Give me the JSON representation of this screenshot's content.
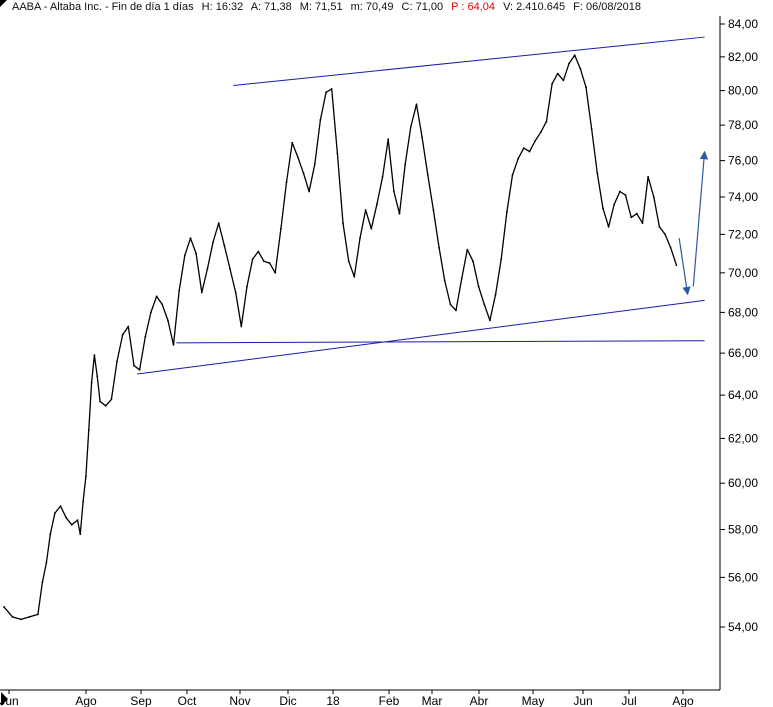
{
  "header": {
    "ticker_name": "AABA - Altaba Inc. - Fin de día 1 días",
    "high": "H: 16:32",
    "open": "A: 71,38",
    "max": "M: 71,51",
    "min": "m: 70,49",
    "close": "C: 71,00",
    "p": "P : 64,04",
    "volume": "V: 2.410.645",
    "date": "F: 06/08/2018"
  },
  "colors": {
    "price": "#000000",
    "trendline": "#1c1ca8",
    "arrow": "#2a5aa0",
    "header_highlight": "#e00000",
    "axis_text": "#000000"
  },
  "chart_data": {
    "type": "line",
    "title": "AABA - Altaba Inc. - Fin de día 1 días",
    "x_ticks": [
      "Jun",
      "Ago",
      "Sep",
      "Oct",
      "Nov",
      "Dic",
      "18",
      "Feb",
      "Mar",
      "Abr",
      "May",
      "Jun",
      "Jul",
      "Ago"
    ],
    "y_ticks": [
      "54,00",
      "56,00",
      "58,00",
      "60,00",
      "62,00",
      "64,00",
      "66,00",
      "68,00",
      "70,00",
      "72,00",
      "74,00",
      "76,00",
      "78,00",
      "80,00",
      "82,00",
      "84,00"
    ],
    "ylim": [
      52.5,
      84.5
    ],
    "y_scale": "log",
    "grid": false,
    "series": [
      {
        "values": [
          [
            0,
            54.8
          ],
          [
            1.5,
            54.4
          ],
          [
            3,
            54.3
          ],
          [
            4.5,
            54.4
          ],
          [
            6,
            54.5
          ],
          [
            6.8,
            55.8
          ],
          [
            7.5,
            56.6
          ],
          [
            8.2,
            57.8
          ],
          [
            9,
            58.7
          ],
          [
            10,
            59.0
          ],
          [
            11,
            58.5
          ],
          [
            12,
            58.2
          ],
          [
            13,
            58.4
          ],
          [
            13.5,
            57.8
          ],
          [
            14,
            59.2
          ],
          [
            14.5,
            60.3
          ],
          [
            15,
            62.4
          ],
          [
            15.5,
            64.6
          ],
          [
            16,
            65.9
          ],
          [
            16.5,
            64.9
          ],
          [
            17,
            63.7
          ],
          [
            18,
            63.5
          ],
          [
            19,
            63.8
          ],
          [
            20,
            65.6
          ],
          [
            21,
            66.9
          ],
          [
            22,
            67.3
          ],
          [
            23,
            65.4
          ],
          [
            24,
            65.2
          ],
          [
            25,
            66.8
          ],
          [
            26,
            68.0
          ],
          [
            27,
            68.8
          ],
          [
            28,
            68.4
          ],
          [
            29,
            67.6
          ],
          [
            30,
            66.4
          ],
          [
            31,
            69.1
          ],
          [
            32,
            70.9
          ],
          [
            33,
            71.8
          ],
          [
            34,
            71.0
          ],
          [
            35,
            69.0
          ],
          [
            36,
            70.2
          ],
          [
            37,
            71.6
          ],
          [
            38,
            72.6
          ],
          [
            39,
            71.4
          ],
          [
            40,
            70.2
          ],
          [
            41,
            69.0
          ],
          [
            42,
            67.3
          ],
          [
            43,
            69.3
          ],
          [
            44,
            70.7
          ],
          [
            45,
            71.1
          ],
          [
            46,
            70.6
          ],
          [
            47,
            70.5
          ],
          [
            48,
            70.0
          ],
          [
            49,
            72.3
          ],
          [
            50,
            74.8
          ],
          [
            51,
            77.0
          ],
          [
            52,
            76.2
          ],
          [
            53,
            75.3
          ],
          [
            54,
            74.3
          ],
          [
            55,
            75.8
          ],
          [
            56,
            78.3
          ],
          [
            57,
            79.9
          ],
          [
            58,
            80.1
          ],
          [
            59,
            76.4
          ],
          [
            60,
            72.6
          ],
          [
            61,
            70.6
          ],
          [
            62,
            69.8
          ],
          [
            63,
            71.8
          ],
          [
            64,
            73.3
          ],
          [
            65,
            72.3
          ],
          [
            66,
            73.6
          ],
          [
            67,
            75.1
          ],
          [
            68,
            77.2
          ],
          [
            69,
            74.3
          ],
          [
            70,
            73.1
          ],
          [
            71,
            75.8
          ],
          [
            72,
            77.9
          ],
          [
            73,
            79.2
          ],
          [
            74,
            77.3
          ],
          [
            75,
            75.2
          ],
          [
            76,
            73.3
          ],
          [
            77,
            71.3
          ],
          [
            78,
            69.6
          ],
          [
            79,
            68.4
          ],
          [
            80,
            68.1
          ],
          [
            81,
            69.7
          ],
          [
            82,
            71.2
          ],
          [
            83,
            70.6
          ],
          [
            84,
            69.3
          ],
          [
            85,
            68.4
          ],
          [
            86,
            67.6
          ],
          [
            87,
            68.9
          ],
          [
            88,
            70.7
          ],
          [
            89,
            73.2
          ],
          [
            90,
            75.2
          ],
          [
            91,
            76.1
          ],
          [
            92,
            76.7
          ],
          [
            93,
            76.5
          ],
          [
            94,
            77.1
          ],
          [
            95,
            77.6
          ],
          [
            96,
            78.2
          ],
          [
            97,
            80.4
          ],
          [
            98,
            81.0
          ],
          [
            99,
            80.6
          ],
          [
            100,
            81.6
          ],
          [
            101,
            82.1
          ],
          [
            102,
            81.3
          ],
          [
            103,
            80.2
          ],
          [
            104,
            77.8
          ],
          [
            105,
            75.3
          ],
          [
            106,
            73.4
          ],
          [
            107,
            72.4
          ],
          [
            108,
            73.6
          ],
          [
            109,
            74.3
          ],
          [
            110,
            74.1
          ],
          [
            111,
            72.9
          ],
          [
            112,
            73.1
          ],
          [
            113,
            72.6
          ],
          [
            114,
            75.1
          ],
          [
            115,
            74.0
          ],
          [
            116,
            72.4
          ],
          [
            117,
            72.0
          ],
          [
            118,
            71.3
          ],
          [
            119,
            70.4
          ]
        ]
      }
    ],
    "annotations": [
      {
        "type": "trendline",
        "from": [
          40.6,
          80.3
        ],
        "to": [
          124.0,
          83.2
        ]
      },
      {
        "type": "trendline",
        "from": [
          23.6,
          65.0
        ],
        "to": [
          124.0,
          68.6
        ]
      },
      {
        "type": "trendline",
        "from": [
          30.5,
          66.5
        ],
        "to": [
          124.0,
          66.6
        ]
      },
      {
        "type": "arrow",
        "from": [
          119.5,
          71.8
        ],
        "to": [
          121.0,
          68.9
        ]
      },
      {
        "type": "arrow",
        "from": [
          122.0,
          69.3
        ],
        "to": [
          124.0,
          76.5
        ]
      }
    ]
  }
}
